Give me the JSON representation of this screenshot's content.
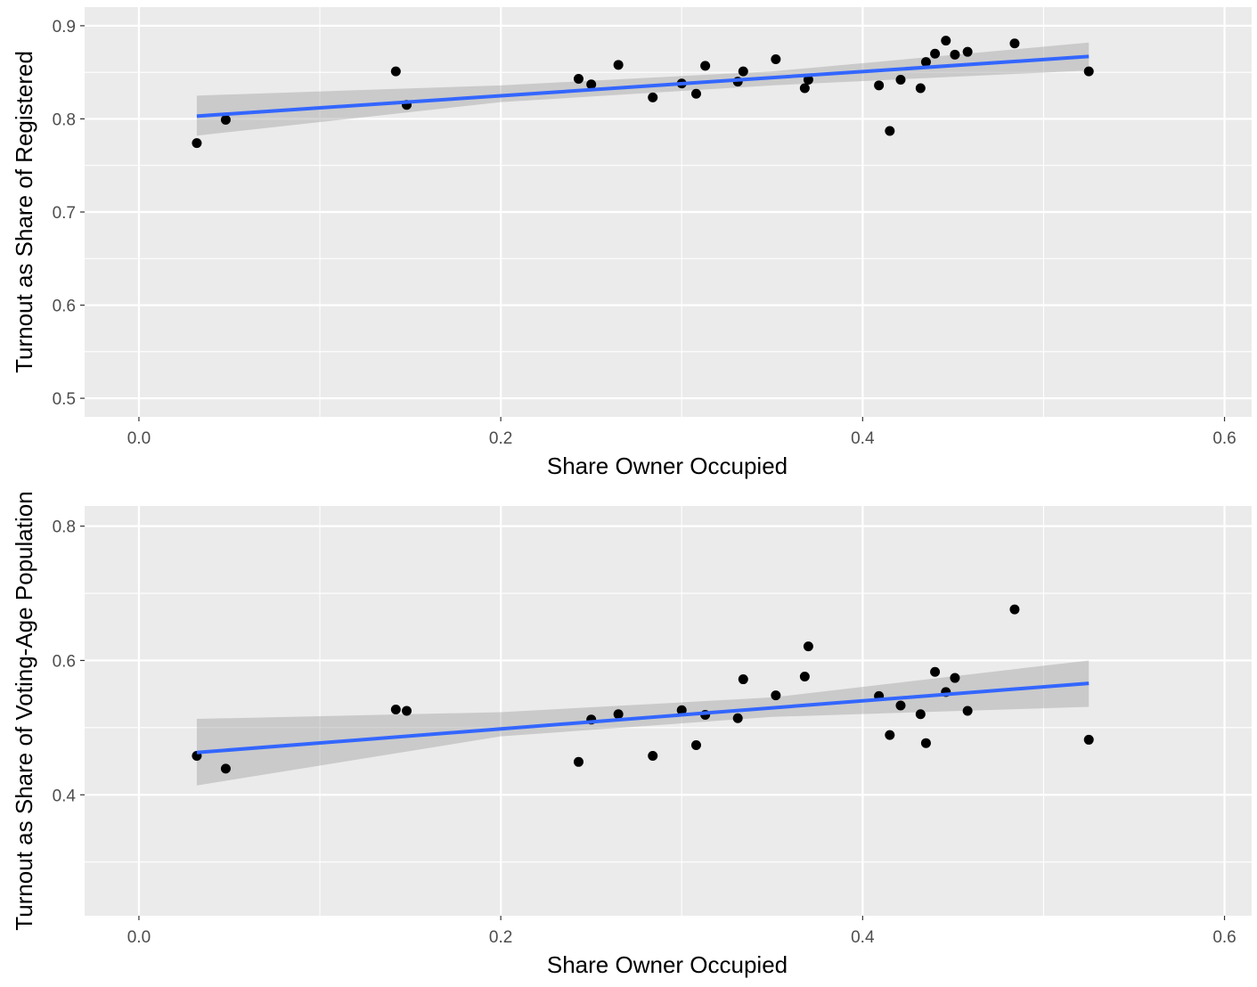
{
  "chart_data": [
    {
      "type": "scatter",
      "xlabel": "Share Owner Occupied",
      "ylabel": "Turnout as Share of  Registered",
      "xlim": [
        -0.03,
        0.615
      ],
      "ylim": [
        0.48,
        0.92
      ],
      "x_ticks": [
        "0.0",
        "0.2",
        "0.4",
        "0.6"
      ],
      "y_ticks": [
        "0.5",
        "0.6",
        "0.7",
        "0.8",
        "0.9"
      ],
      "grid": true,
      "colors": {
        "panel": "#ebebeb",
        "grid": "#ffffff",
        "points": "#000000",
        "fit_line": "#3366ff",
        "ribbon": "#999999"
      },
      "points": [
        {
          "x": 0.032,
          "y": 0.774
        },
        {
          "x": 0.048,
          "y": 0.799
        },
        {
          "x": 0.142,
          "y": 0.851
        },
        {
          "x": 0.148,
          "y": 0.815
        },
        {
          "x": 0.243,
          "y": 0.843
        },
        {
          "x": 0.25,
          "y": 0.837
        },
        {
          "x": 0.265,
          "y": 0.858
        },
        {
          "x": 0.284,
          "y": 0.823
        },
        {
          "x": 0.3,
          "y": 0.838
        },
        {
          "x": 0.308,
          "y": 0.827
        },
        {
          "x": 0.313,
          "y": 0.857
        },
        {
          "x": 0.331,
          "y": 0.84
        },
        {
          "x": 0.334,
          "y": 0.851
        },
        {
          "x": 0.352,
          "y": 0.864
        },
        {
          "x": 0.368,
          "y": 0.833
        },
        {
          "x": 0.37,
          "y": 0.842
        },
        {
          "x": 0.409,
          "y": 0.836
        },
        {
          "x": 0.415,
          "y": 0.787
        },
        {
          "x": 0.421,
          "y": 0.842
        },
        {
          "x": 0.432,
          "y": 0.833
        },
        {
          "x": 0.435,
          "y": 0.861
        },
        {
          "x": 0.44,
          "y": 0.87
        },
        {
          "x": 0.446,
          "y": 0.884
        },
        {
          "x": 0.451,
          "y": 0.869
        },
        {
          "x": 0.458,
          "y": 0.872
        },
        {
          "x": 0.484,
          "y": 0.881
        },
        {
          "x": 0.525,
          "y": 0.851
        }
      ],
      "fit": {
        "x": [
          0.032,
          0.525
        ],
        "y": [
          0.803,
          0.867
        ]
      },
      "ribbon": {
        "x": [
          0.032,
          0.2,
          0.35,
          0.525
        ],
        "lower": [
          0.782,
          0.818,
          0.836,
          0.852
        ],
        "upper": [
          0.825,
          0.836,
          0.851,
          0.882
        ]
      }
    },
    {
      "type": "scatter",
      "xlabel": "Share Owner Occupied",
      "ylabel": "Turnout as Share of Voting-Age Population",
      "xlim": [
        -0.03,
        0.615
      ],
      "ylim": [
        0.22,
        0.83
      ],
      "x_ticks": [
        "0.0",
        "0.2",
        "0.4",
        "0.6"
      ],
      "y_ticks": [
        "0.4",
        "0.6",
        "0.8"
      ],
      "grid": true,
      "colors": {
        "panel": "#ebebeb",
        "grid": "#ffffff",
        "points": "#000000",
        "fit_line": "#3366ff",
        "ribbon": "#999999"
      },
      "points": [
        {
          "x": 0.032,
          "y": 0.458
        },
        {
          "x": 0.048,
          "y": 0.439
        },
        {
          "x": 0.142,
          "y": 0.527
        },
        {
          "x": 0.148,
          "y": 0.525
        },
        {
          "x": 0.243,
          "y": 0.449
        },
        {
          "x": 0.25,
          "y": 0.512
        },
        {
          "x": 0.265,
          "y": 0.52
        },
        {
          "x": 0.284,
          "y": 0.458
        },
        {
          "x": 0.3,
          "y": 0.526
        },
        {
          "x": 0.308,
          "y": 0.474
        },
        {
          "x": 0.313,
          "y": 0.519
        },
        {
          "x": 0.331,
          "y": 0.514
        },
        {
          "x": 0.334,
          "y": 0.572
        },
        {
          "x": 0.352,
          "y": 0.548
        },
        {
          "x": 0.368,
          "y": 0.576
        },
        {
          "x": 0.37,
          "y": 0.621
        },
        {
          "x": 0.409,
          "y": 0.547
        },
        {
          "x": 0.415,
          "y": 0.489
        },
        {
          "x": 0.421,
          "y": 0.533
        },
        {
          "x": 0.432,
          "y": 0.52
        },
        {
          "x": 0.435,
          "y": 0.477
        },
        {
          "x": 0.44,
          "y": 0.583
        },
        {
          "x": 0.446,
          "y": 0.553
        },
        {
          "x": 0.451,
          "y": 0.574
        },
        {
          "x": 0.458,
          "y": 0.525
        },
        {
          "x": 0.484,
          "y": 0.676
        },
        {
          "x": 0.525,
          "y": 0.482
        }
      ],
      "fit": {
        "x": [
          0.032,
          0.525
        ],
        "y": [
          0.463,
          0.566
        ]
      },
      "ribbon": {
        "x": [
          0.032,
          0.2,
          0.35,
          0.525
        ],
        "lower": [
          0.414,
          0.487,
          0.516,
          0.531
        ],
        "upper": [
          0.513,
          0.523,
          0.545,
          0.6
        ]
      }
    }
  ]
}
